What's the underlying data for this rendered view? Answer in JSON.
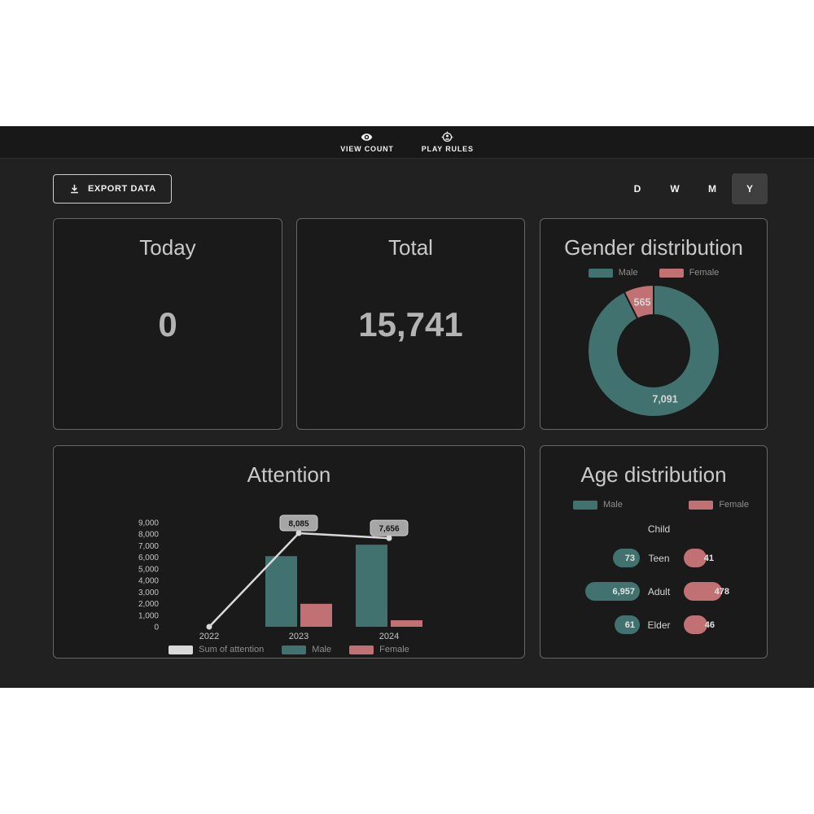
{
  "header": {
    "nav": [
      {
        "label": "VIEW COUNT",
        "icon": "eye-icon"
      },
      {
        "label": "PLAY RULES",
        "icon": "play-rules-icon"
      }
    ]
  },
  "toolbar": {
    "export_label": "EXPORT DATA",
    "range_buttons": [
      {
        "label": "D",
        "active": false
      },
      {
        "label": "W",
        "active": false
      },
      {
        "label": "M",
        "active": false
      },
      {
        "label": "Y",
        "active": true
      }
    ]
  },
  "cards": {
    "today": {
      "title": "Today",
      "value": "0"
    },
    "total": {
      "title": "Total",
      "value": "15,741"
    }
  },
  "colors": {
    "male": "#417270",
    "female": "#c17173",
    "sum_line": "#d9d9d9",
    "label_box_bg": "#a6a6a6",
    "label_box_border": "#d0d0d0",
    "label_box_text": "#141414",
    "axis_text": "#c6c6c6",
    "card_bg": "#1a1a1a"
  },
  "chart_data": [
    {
      "id": "gender",
      "type": "pie",
      "title": "Gender distribution",
      "legend_position": "top-center",
      "slices": [
        {
          "label": "Male",
          "value": 7091,
          "display": "7,091",
          "color_key": "male"
        },
        {
          "label": "Female",
          "value": 565,
          "display": "565",
          "color_key": "female"
        }
      ]
    },
    {
      "id": "attention",
      "type": "bar+line",
      "title": "Attention",
      "categories": [
        "2022",
        "2023",
        "2024"
      ],
      "series": [
        {
          "name": "Sum of attention",
          "type": "line",
          "color_key": "sum_line",
          "values": [
            0,
            8085,
            7656
          ],
          "labels": [
            null,
            "8,085",
            "7,656"
          ]
        },
        {
          "name": "Male",
          "type": "bar",
          "color_key": "male",
          "values": [
            0,
            6100,
            7091
          ]
        },
        {
          "name": "Female",
          "type": "bar",
          "color_key": "female",
          "values": [
            0,
            1985,
            565
          ]
        }
      ],
      "ylim": [
        0,
        9000
      ],
      "ytick_step": 1000,
      "grid": false,
      "legend_position": "bottom-center"
    },
    {
      "id": "age",
      "type": "bubble-rows",
      "title": "Age distribution",
      "legend": [
        {
          "label": "Male",
          "color_key": "male"
        },
        {
          "label": "Female",
          "color_key": "female"
        }
      ],
      "rows": [
        {
          "label": "Child",
          "male": null,
          "male_display": null,
          "female": null,
          "female_display": null
        },
        {
          "label": "Teen",
          "male": 73,
          "male_display": "73",
          "female": 41,
          "female_display": "41"
        },
        {
          "label": "Adult",
          "male": 6957,
          "male_display": "6,957",
          "female": 478,
          "female_display": "478"
        },
        {
          "label": "Elder",
          "male": 61,
          "male_display": "61",
          "female": 46,
          "female_display": "46"
        }
      ]
    }
  ]
}
